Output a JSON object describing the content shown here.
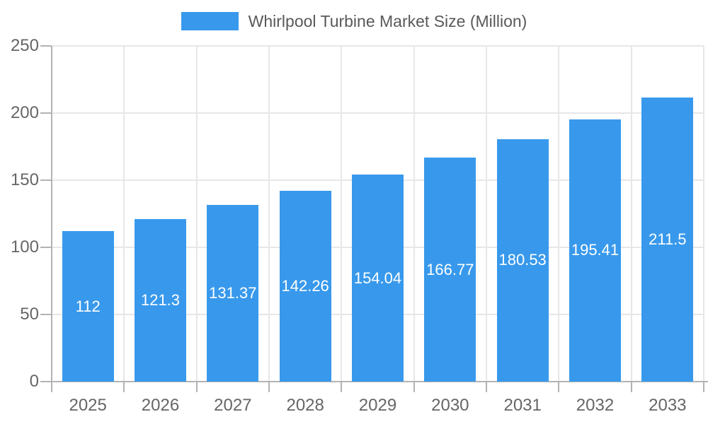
{
  "chart_data": {
    "type": "bar",
    "title": "Whirlpool Turbine Market Size (Million)",
    "legend": [
      "Whirlpool Turbine Market Size (Million)"
    ],
    "legend_position": "top-center",
    "categories": [
      "2025",
      "2026",
      "2027",
      "2028",
      "2029",
      "2030",
      "2031",
      "2032",
      "2033"
    ],
    "values": [
      112,
      121.3,
      131.37,
      142.26,
      154.04,
      166.77,
      180.53,
      195.41,
      211.5
    ],
    "value_labels": [
      "112",
      "121.3",
      "131.37",
      "142.26",
      "154.04",
      "166.77",
      "180.53",
      "195.41",
      "211.5"
    ],
    "xlabel": "",
    "ylabel": "",
    "ylim": [
      0,
      250
    ],
    "ytick_interval": 50,
    "yticks": [
      "0",
      "50",
      "100",
      "150",
      "200",
      "250"
    ],
    "grid": true,
    "colors": {
      "bar": "#3899EC",
      "value_label": "#ffffff",
      "axis": "#b3b3b3",
      "grid": "#e7e7e7",
      "tick_label": "#666666",
      "legend_text": "#595959",
      "background": "#ffffff"
    }
  }
}
